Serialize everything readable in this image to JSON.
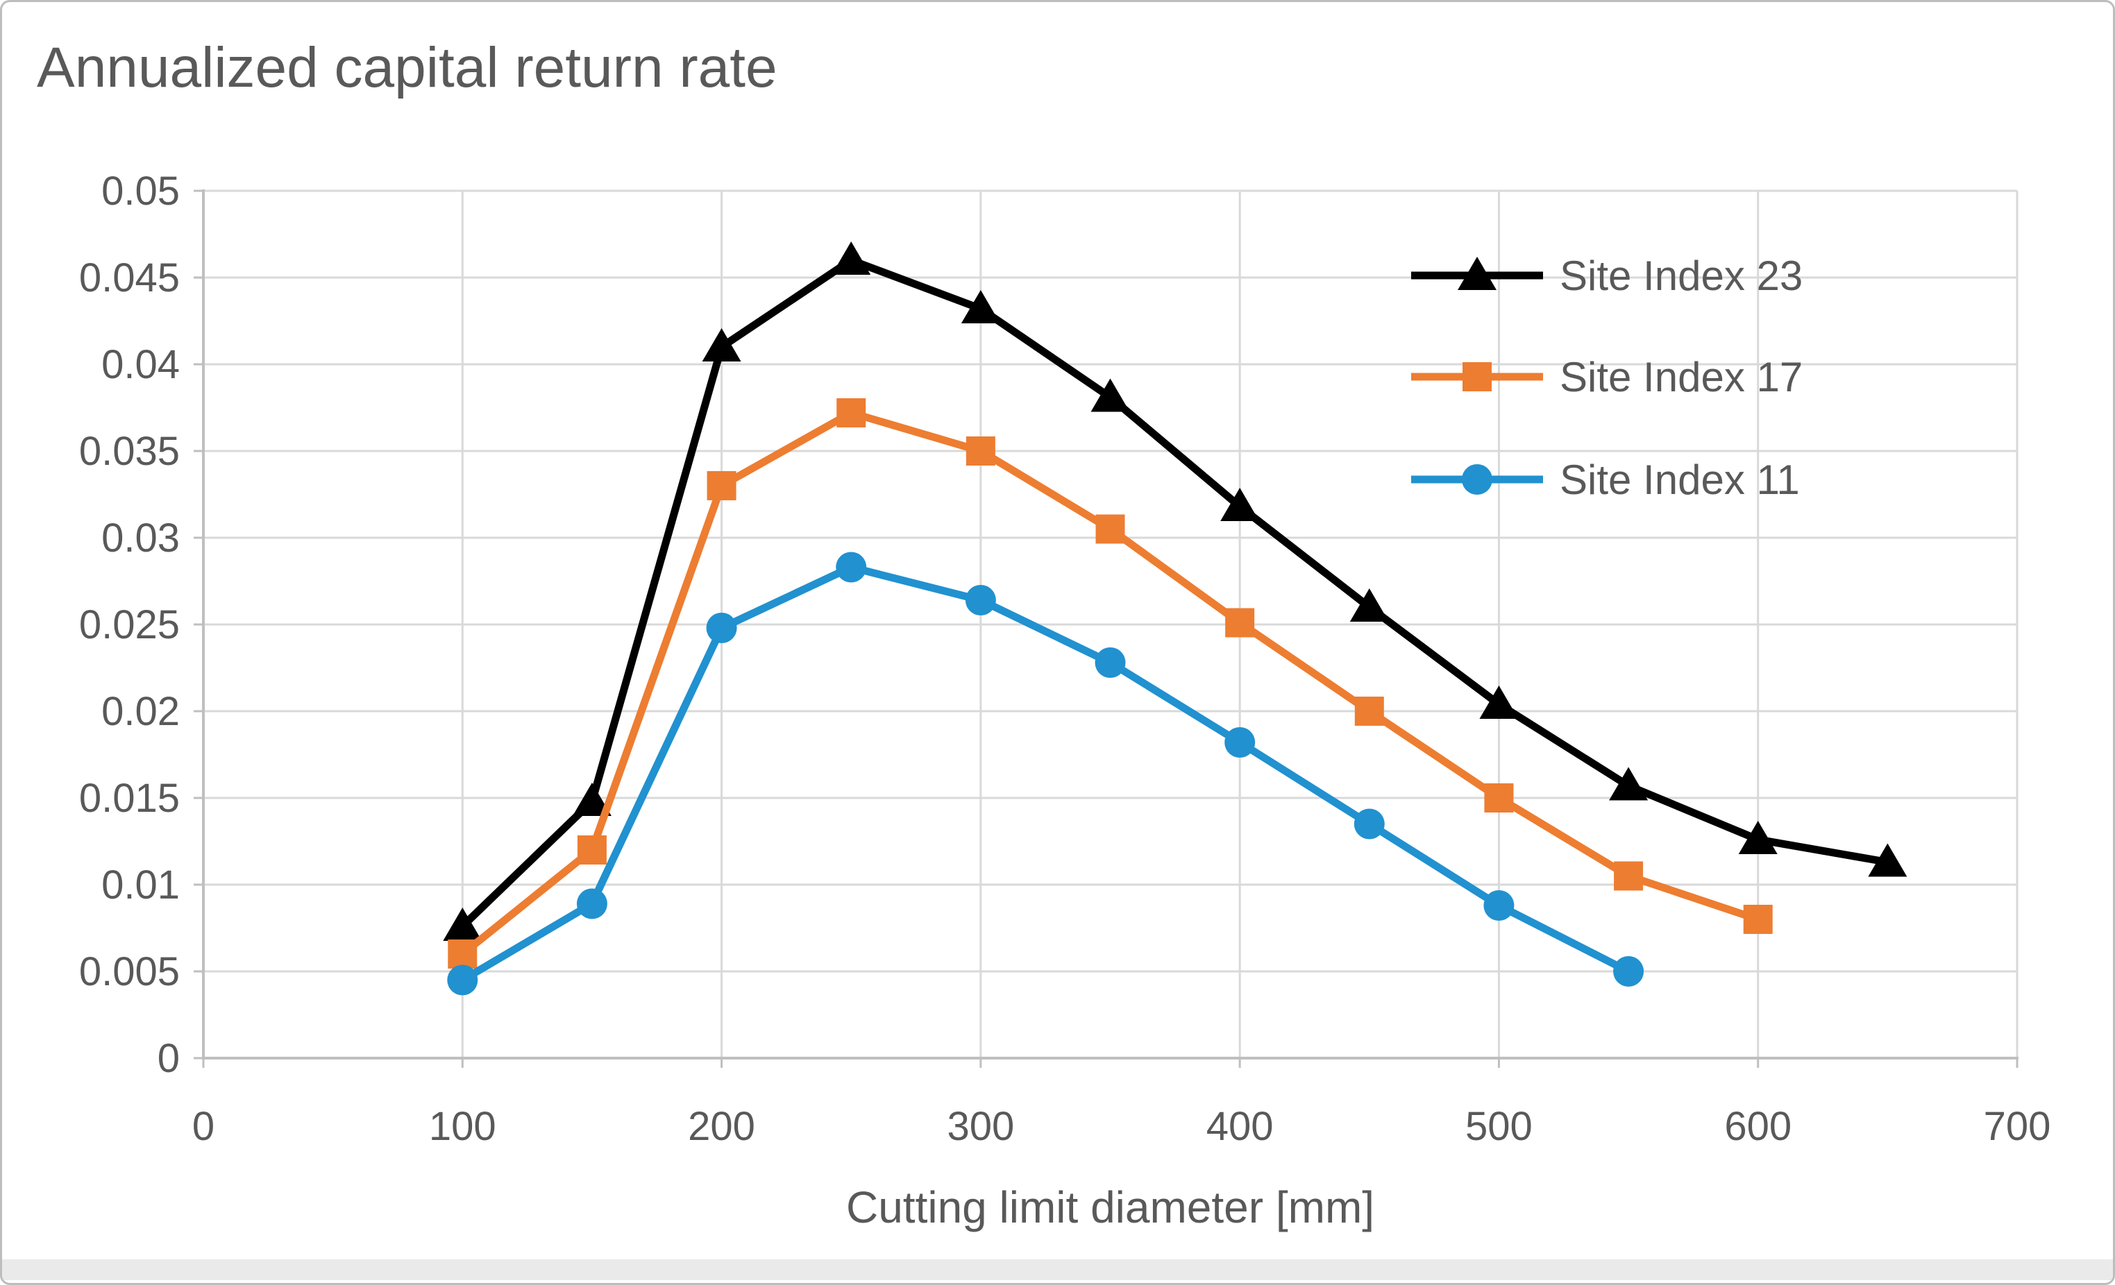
{
  "title": "Annualized capital return rate",
  "x_axis": {
    "label": "Cutting limit diameter [mm]"
  },
  "colors": {
    "text": "#595959",
    "grid": "#d9d9d9",
    "axis": "#bfbfbf",
    "series_black": "#000000",
    "series_orange": "#ED7D31",
    "series_blue": "#2191D0"
  },
  "chart_data": {
    "type": "line",
    "title": "Annualized capital return rate",
    "xlabel": "Cutting limit diameter [mm]",
    "ylabel": "",
    "xlim": [
      0,
      700
    ],
    "ylim": [
      0,
      0.05
    ],
    "grid": true,
    "legend_position": "inside-top-right",
    "x_ticks": [
      0,
      100,
      200,
      300,
      400,
      500,
      600,
      700
    ],
    "x_tick_labels": [
      "0",
      "100",
      "200",
      "300",
      "400",
      "500",
      "600",
      "700"
    ],
    "y_ticks": [
      0,
      0.005,
      0.01,
      0.015,
      0.02,
      0.025,
      0.03,
      0.035,
      0.04,
      0.045,
      0.05
    ],
    "y_tick_labels": [
      "0",
      "0.005",
      "0.01",
      "0.015",
      "0.02",
      "0.025",
      "0.03",
      "0.035",
      "0.04",
      "0.045",
      "0.05"
    ],
    "series": [
      {
        "name": "Site Index 23",
        "marker": "triangle",
        "color": "#000000",
        "x": [
          100,
          150,
          200,
          250,
          300,
          350,
          400,
          450,
          500,
          550,
          600,
          650
        ],
        "y": [
          0.0076,
          0.0148,
          0.041,
          0.046,
          0.0432,
          0.0381,
          0.0318,
          0.026,
          0.0204,
          0.0157,
          0.0126,
          0.0113
        ]
      },
      {
        "name": "Site Index 17",
        "marker": "square",
        "color": "#ED7D31",
        "x": [
          100,
          150,
          200,
          250,
          300,
          350,
          400,
          450,
          500,
          550,
          600
        ],
        "y": [
          0.006,
          0.012,
          0.033,
          0.0372,
          0.035,
          0.0305,
          0.0251,
          0.02,
          0.015,
          0.0105,
          0.008
        ]
      },
      {
        "name": "Site Index 11",
        "marker": "circle",
        "color": "#2191D0",
        "x": [
          100,
          150,
          200,
          250,
          300,
          350,
          400,
          450,
          500,
          550
        ],
        "y": [
          0.0045,
          0.0089,
          0.0248,
          0.0283,
          0.0264,
          0.0228,
          0.0182,
          0.0135,
          0.0088,
          0.005
        ]
      }
    ]
  }
}
